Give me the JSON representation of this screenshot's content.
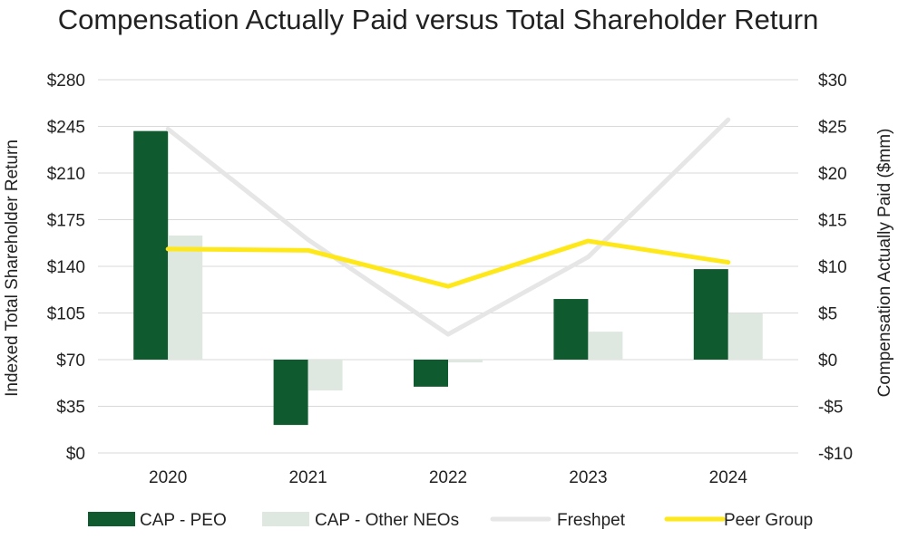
{
  "chart_data": {
    "type": "bar",
    "title": "Compensation Actually Paid versus Total Shareholder Return",
    "categories": [
      "2020",
      "2021",
      "2022",
      "2023",
      "2024"
    ],
    "left_axis": {
      "label": "Indexed Total Shareholder Return",
      "range": [
        0,
        280
      ],
      "ticks": [
        0,
        35,
        70,
        105,
        140,
        175,
        210,
        245,
        280
      ],
      "tick_labels": [
        "$0",
        "$35",
        "$70",
        "$105",
        "$140",
        "$175",
        "$210",
        "$245",
        "$280"
      ]
    },
    "right_axis": {
      "label": "Compensation Actually Paid ($mm)",
      "range": [
        -10,
        30
      ],
      "ticks": [
        -10,
        -5,
        0,
        5,
        10,
        15,
        20,
        25,
        30
      ],
      "tick_labels": [
        "-$10",
        "-$5",
        "$0",
        "$5",
        "$10",
        "$15",
        "$20",
        "$25",
        "$30"
      ]
    },
    "grid": true,
    "legend_position": "bottom",
    "bar_series": [
      {
        "name": "CAP - PEO",
        "axis": "right",
        "color": "#0f5a2e",
        "values": [
          24.5,
          -7.0,
          -2.9,
          6.5,
          9.7
        ]
      },
      {
        "name": "CAP - Other NEOs",
        "axis": "right",
        "color": "#dfe8e0",
        "values": [
          13.3,
          -3.3,
          -0.3,
          3.0,
          5.0
        ]
      }
    ],
    "line_series": [
      {
        "name": "Freshpet",
        "axis": "left",
        "color": "#e6e6e6",
        "values": [
          243,
          160,
          89,
          147,
          250
        ]
      },
      {
        "name": "Peer Group",
        "axis": "left",
        "color": "#ffe81a",
        "values": [
          153,
          152,
          125,
          159,
          143
        ]
      }
    ]
  }
}
